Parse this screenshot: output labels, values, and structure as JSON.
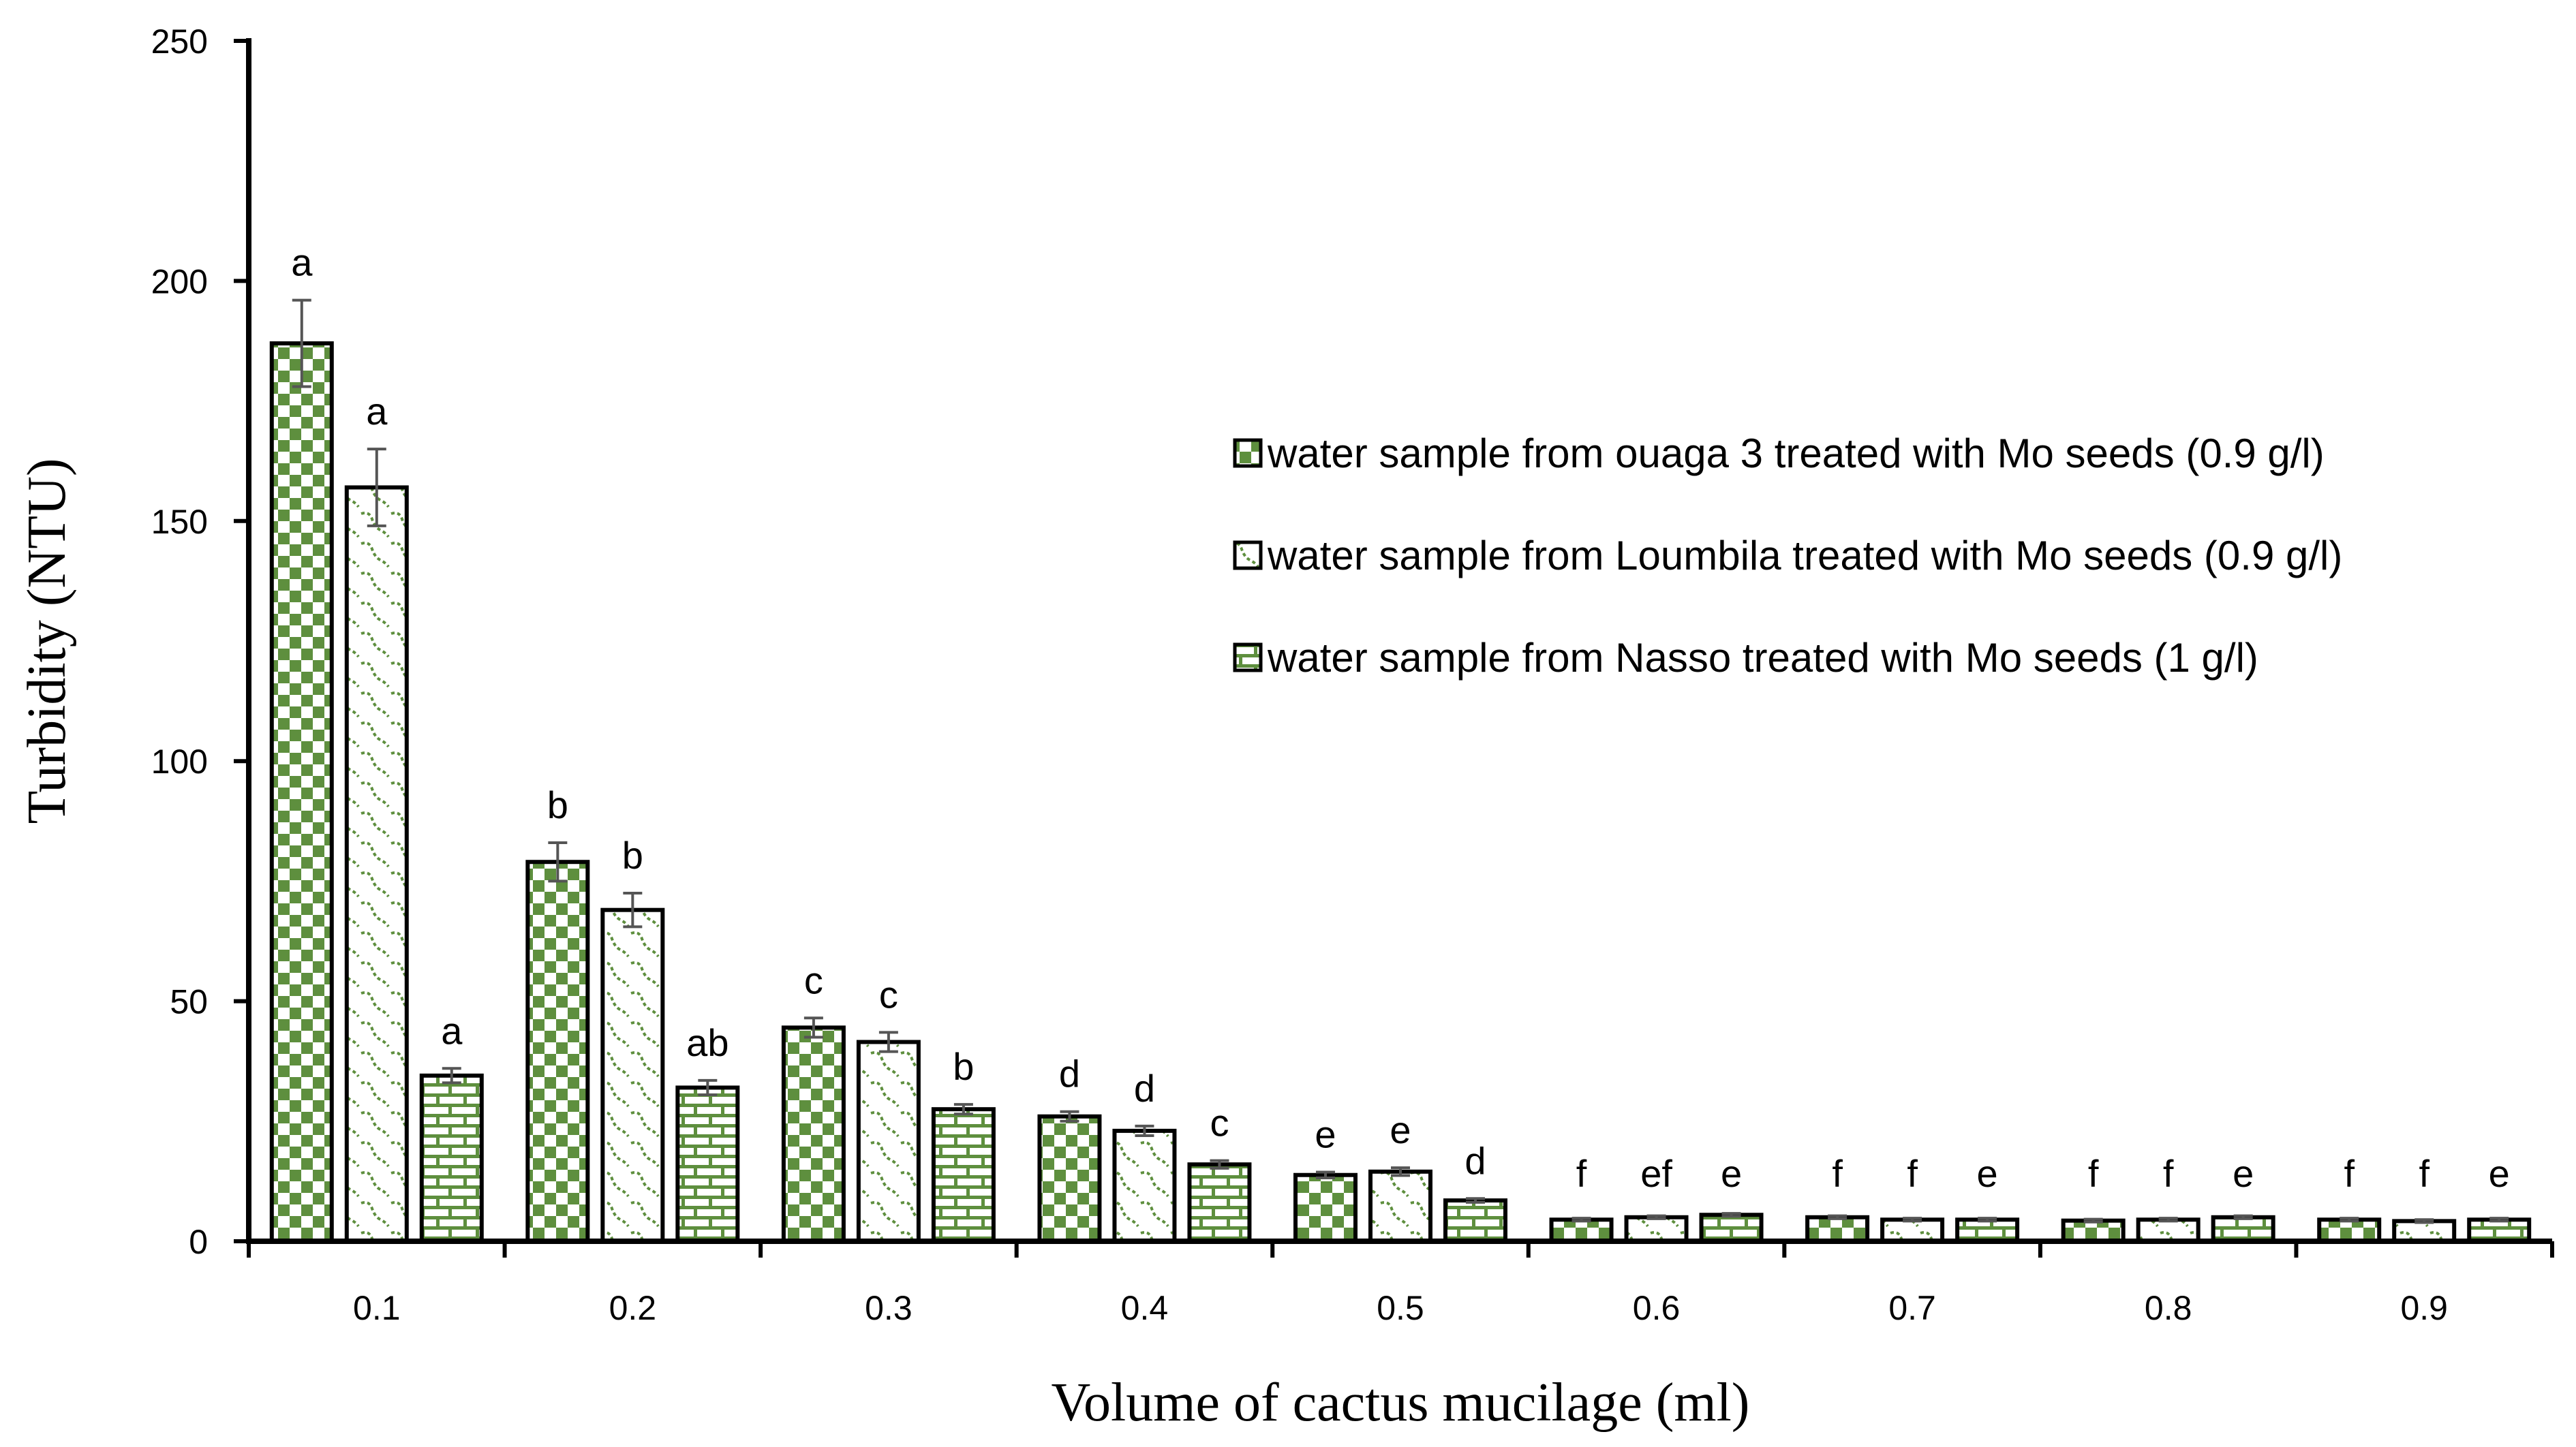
{
  "chart_data": {
    "type": "bar",
    "title": "",
    "xlabel": "Volume of cactus mucilage (ml)",
    "ylabel": "Turbidity (NTU)",
    "ylim": [
      0,
      250
    ],
    "yticks": [
      "0",
      "50",
      "100",
      "150",
      "200",
      "250"
    ],
    "categories": [
      "0.1",
      "0.2",
      "0.3",
      "0.4",
      "0.5",
      "0.6",
      "0.7",
      "0.8",
      "0.9"
    ],
    "legend_position": "right",
    "series": [
      {
        "name": "water sample from ouaga 3 treated with Mo seeds (0.9 g/l)",
        "pattern": "checker",
        "values": [
          187,
          79,
          44.5,
          26,
          13.8,
          4.5,
          5,
          4.3,
          4.5
        ],
        "errors": [
          9,
          4,
          2,
          1,
          0.6,
          0.3,
          0.3,
          0.3,
          0.3
        ],
        "significance": [
          "a",
          "b",
          "c",
          "d",
          "e",
          "f",
          "f",
          "f",
          "f"
        ]
      },
      {
        "name": "water sample from Loumbila treated with Mo seeds (0.9 g/l)",
        "pattern": "wave",
        "values": [
          157,
          69,
          41.5,
          23,
          14.5,
          5,
          4.5,
          4.5,
          4.2
        ],
        "errors": [
          8,
          3.5,
          2,
          1,
          0.8,
          0.3,
          0.3,
          0.3,
          0.3
        ],
        "significance": [
          "a",
          "b",
          "c",
          "d",
          "e",
          "ef",
          "f",
          "f",
          "f"
        ]
      },
      {
        "name": "water sample from Nasso treated with Mo seeds  (1 g/l)",
        "pattern": "brick",
        "values": [
          34.5,
          32,
          27.5,
          16,
          8.5,
          5.5,
          4.5,
          5,
          4.5
        ],
        "errors": [
          1.5,
          1.5,
          1,
          0.8,
          0.4,
          0.3,
          0.3,
          0.3,
          0.3
        ],
        "significance": [
          "a",
          "ab",
          "b",
          "c",
          "d",
          "e",
          "e",
          "e",
          "e"
        ]
      }
    ]
  },
  "colors": {
    "bar_fill": "#5e8f3e",
    "bar_stroke": "#000000",
    "error_bar": "#555555",
    "background": "#ffffff"
  }
}
